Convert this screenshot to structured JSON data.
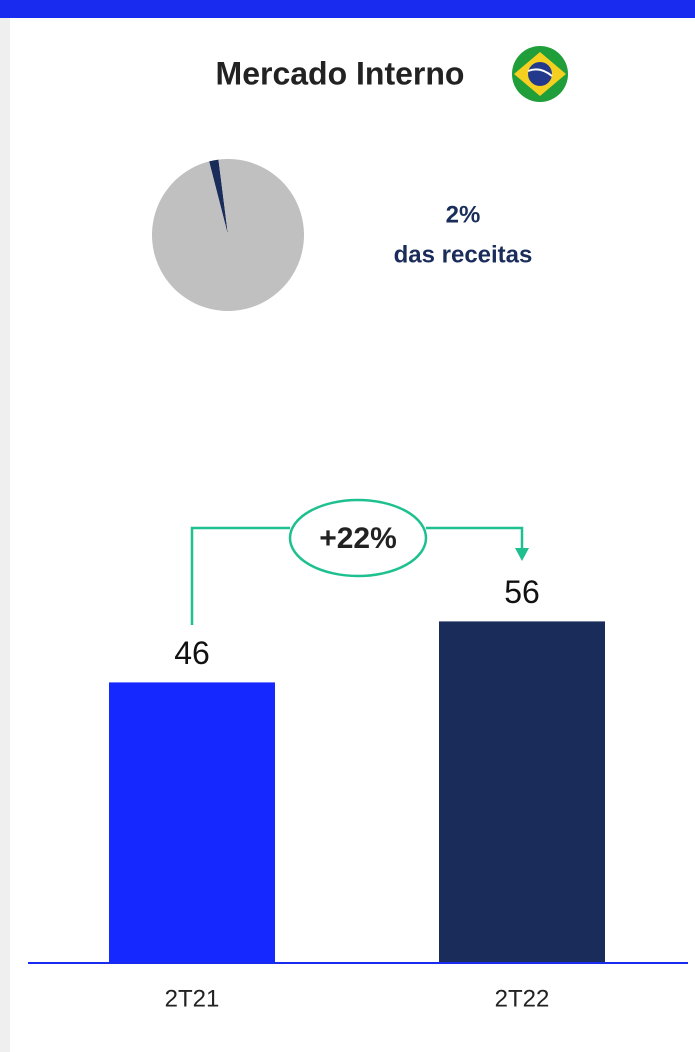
{
  "title": "Mercado Interno",
  "chart_data": [
    {
      "type": "pie",
      "values": [
        2,
        98
      ],
      "value_labels": [
        "2%",
        null
      ],
      "colors": [
        "#1a2d5a",
        "#c0c0c0"
      ],
      "annotation": "das receitas"
    },
    {
      "type": "bar",
      "categories": [
        "2T21",
        "2T22"
      ],
      "values": [
        46,
        56
      ],
      "colors": [
        "#1428ff",
        "#1a2d5a"
      ],
      "ylim": [
        0,
        100
      ],
      "annotation": "+22%"
    }
  ]
}
